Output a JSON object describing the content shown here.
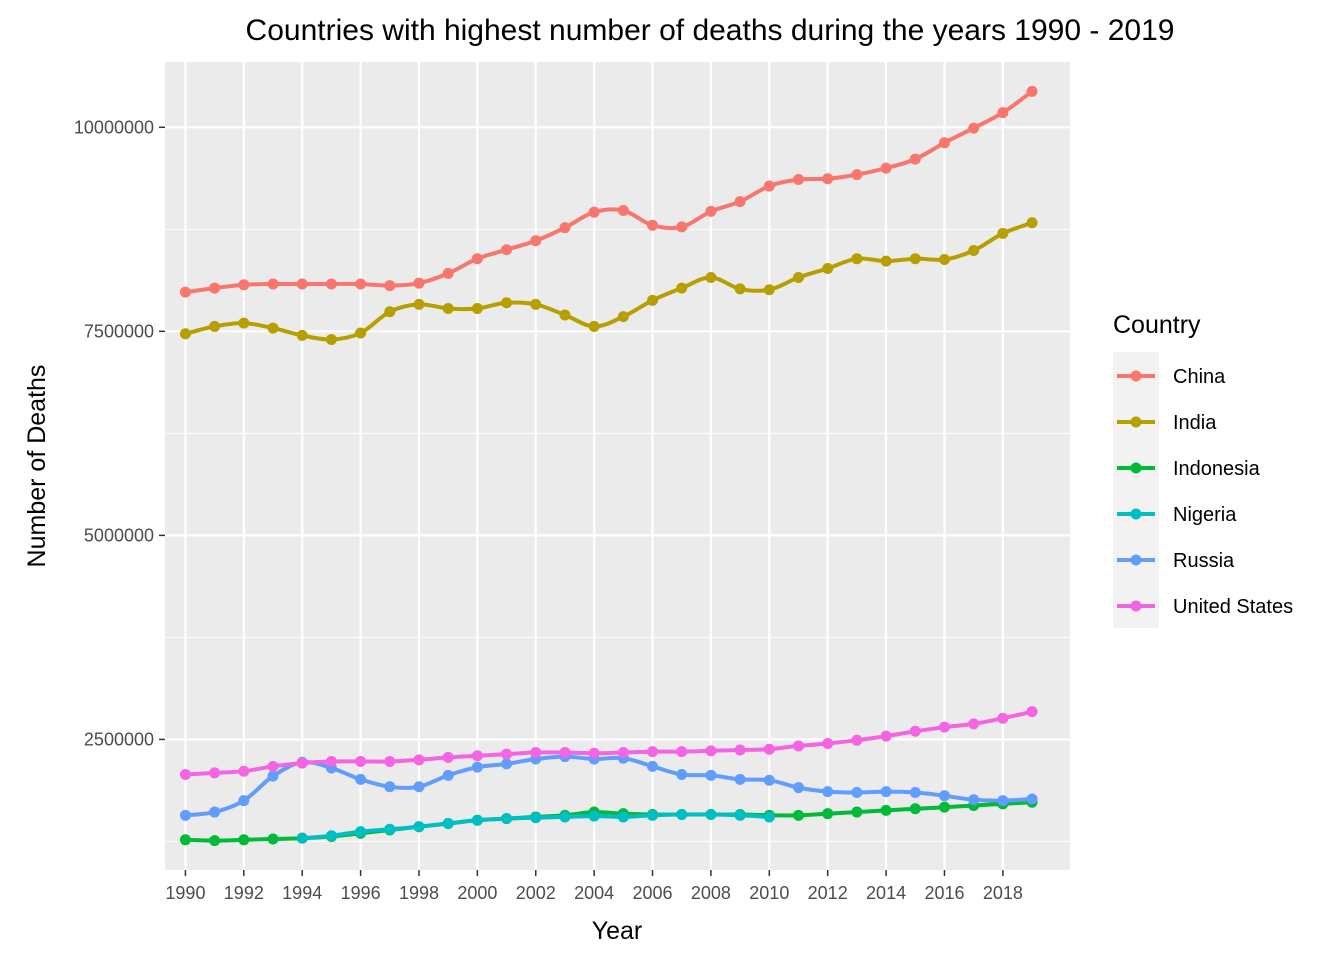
{
  "chart_data": {
    "type": "line",
    "title": "Countries with highest number of deaths during the years 1990 - 2019",
    "xlabel": "Year",
    "ylabel": "Number of Deaths",
    "x": [
      1990,
      1991,
      1992,
      1993,
      1994,
      1995,
      1996,
      1997,
      1998,
      1999,
      2000,
      2001,
      2002,
      2003,
      2004,
      2005,
      2006,
      2007,
      2008,
      2009,
      2010,
      2011,
      2012,
      2013,
      2014,
      2015,
      2016,
      2017,
      2018,
      2019
    ],
    "xticks": [
      "1990",
      "1992",
      "1994",
      "1996",
      "1998",
      "2000",
      "2002",
      "2004",
      "2006",
      "2008",
      "2010",
      "2012",
      "2014",
      "2016",
      "2018"
    ],
    "yticks": [
      "2500000",
      "5000000",
      "7500000",
      "10000000"
    ],
    "ylim": [
      900000,
      10800000
    ],
    "xlim": [
      1989.3,
      2020.3
    ],
    "grid": true,
    "legend_position": "right",
    "legend_title": "Country",
    "series": [
      {
        "name": "China",
        "color": "#F8766D",
        "values": [
          7980000,
          8030000,
          8070000,
          8080000,
          8080000,
          8080000,
          8080000,
          8060000,
          8090000,
          8210000,
          8390000,
          8500000,
          8610000,
          8770000,
          8960000,
          8980000,
          8800000,
          8780000,
          8970000,
          9090000,
          9280000,
          9360000,
          9370000,
          9420000,
          9500000,
          9610000,
          9810000,
          9990000,
          10180000,
          10440000
        ]
      },
      {
        "name": "India",
        "color": "#B79F00",
        "values": [
          7470000,
          7560000,
          7600000,
          7540000,
          7450000,
          7400000,
          7480000,
          7740000,
          7830000,
          7780000,
          7780000,
          7850000,
          7830000,
          7700000,
          7560000,
          7680000,
          7880000,
          8030000,
          8160000,
          8020000,
          8010000,
          8160000,
          8270000,
          8390000,
          8360000,
          8390000,
          8380000,
          8490000,
          8700000,
          8830000
        ]
      },
      {
        "name": "Indonesia",
        "color": "#00BA38",
        "values": [
          1270000,
          1260000,
          1270000,
          1280000,
          1290000,
          1310000,
          1350000,
          1390000,
          1430000,
          1470000,
          1510000,
          1530000,
          1550000,
          1570000,
          1610000,
          1590000,
          1580000,
          1580000,
          1580000,
          1580000,
          1570000,
          1570000,
          1590000,
          1610000,
          1630000,
          1650000,
          1670000,
          1690000,
          1710000,
          1730000
        ]
      },
      {
        "name": "Nigeria",
        "color": "#00BFC4",
        "values": [
          null,
          null,
          null,
          null,
          1290000,
          1320000,
          1370000,
          1400000,
          1430000,
          1470000,
          1510000,
          1530000,
          1540000,
          1550000,
          1560000,
          1550000,
          1570000,
          1580000,
          1580000,
          1570000,
          1550000,
          null,
          null,
          null,
          null,
          null,
          null,
          null,
          null,
          null
        ]
      },
      {
        "name": "Russia",
        "color": "#619CFF",
        "values": [
          1570000,
          1610000,
          1750000,
          2050000,
          2220000,
          2150000,
          2010000,
          1920000,
          1920000,
          2060000,
          2160000,
          2200000,
          2260000,
          2290000,
          2260000,
          2270000,
          2170000,
          2070000,
          2060000,
          2010000,
          2000000,
          1910000,
          1860000,
          1850000,
          1860000,
          1850000,
          1810000,
          1760000,
          1750000,
          1770000
        ]
      },
      {
        "name": "United States",
        "color": "#F564E3",
        "values": [
          2070000,
          2090000,
          2110000,
          2170000,
          2210000,
          2230000,
          2230000,
          2230000,
          2250000,
          2280000,
          2300000,
          2320000,
          2340000,
          2340000,
          2330000,
          2340000,
          2350000,
          2350000,
          2360000,
          2370000,
          2380000,
          2420000,
          2450000,
          2490000,
          2540000,
          2600000,
          2650000,
          2690000,
          2760000,
          2840000
        ]
      }
    ]
  }
}
